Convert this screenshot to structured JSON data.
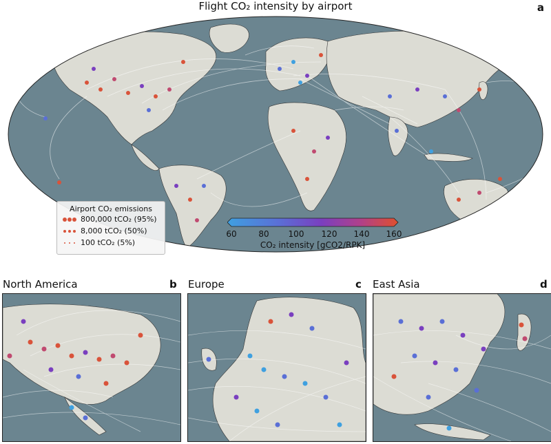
{
  "figure": {
    "title": "Flight CO₂ intensity by airport",
    "panel_a_label": "a"
  },
  "legend": {
    "title": "Airport CO₂ emissions",
    "items": [
      "800,000 tCO₂ (95%)",
      "8,000 tCO₂ (50%)",
      "100 tCO₂ (5%)"
    ]
  },
  "colorbar": {
    "label": "CO₂ intensity [gCO2/RPK]",
    "ticks": [
      "60",
      "80",
      "100",
      "120",
      "140",
      "160"
    ],
    "min": 60,
    "max": 160,
    "colors": [
      "#3fa0e0",
      "#5a6fd6",
      "#7a3fbf",
      "#b0408a",
      "#e0502e"
    ]
  },
  "panels": [
    {
      "title": "North America",
      "label": "b"
    },
    {
      "title": "Europe",
      "label": "c"
    },
    {
      "title": "East Asia",
      "label": "d"
    }
  ],
  "colors": {
    "ocean": "#6b8590",
    "land": "#dcdcd4",
    "routes": "#ffffff",
    "low": "#3fa0e0",
    "high": "#e0502e"
  }
}
